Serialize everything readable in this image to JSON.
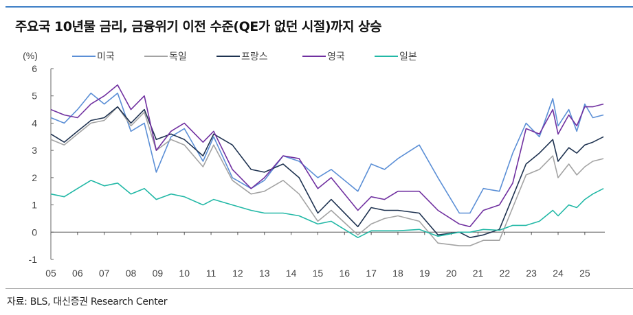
{
  "title": "주요국 10년물 금리, 금융위기 이전 수준(QE가 없던 시절)까지 상승",
  "source": "자료: BLS, 대신증권 Research Center",
  "chart_data": {
    "type": "line",
    "title": "주요국 10년물 금리, 금융위기 이전 수준(QE가 없던 시절)까지 상승",
    "ylabel": "(%)",
    "ylim": [
      -1,
      6
    ],
    "yticks": [
      "-1",
      "0",
      "1",
      "2",
      "3",
      "4",
      "5",
      "6"
    ],
    "xlim": [
      2005,
      2025.75
    ],
    "xticks": [
      "05",
      "06",
      "07",
      "08",
      "09",
      "10",
      "11",
      "12",
      "13",
      "14",
      "15",
      "16",
      "17",
      "18",
      "19",
      "20",
      "21",
      "22",
      "23",
      "24",
      "25"
    ],
    "grid": false,
    "legend": "top",
    "x": [
      2005.0,
      2005.5,
      2006.0,
      2006.5,
      2007.0,
      2007.5,
      2008.0,
      2008.5,
      2008.95,
      2009.5,
      2010.0,
      2010.7,
      2011.1,
      2011.8,
      2012.5,
      2013.0,
      2013.7,
      2014.3,
      2015.0,
      2015.5,
      2016.5,
      2017.0,
      2017.5,
      2018.0,
      2018.8,
      2019.5,
      2020.3,
      2020.7,
      2021.2,
      2021.8,
      2022.3,
      2022.8,
      2023.3,
      2023.8,
      2024.0,
      2024.4,
      2024.7,
      2025.0,
      2025.3,
      2025.7
    ],
    "series": [
      {
        "name": "미국",
        "color": "#5b8fd6",
        "values": [
          4.2,
          4.0,
          4.5,
          5.1,
          4.7,
          5.1,
          3.7,
          4.0,
          2.2,
          3.5,
          3.8,
          2.6,
          3.5,
          2.0,
          1.6,
          1.9,
          2.8,
          2.6,
          2.0,
          2.3,
          1.5,
          2.5,
          2.3,
          2.7,
          3.2,
          2.0,
          0.7,
          0.7,
          1.6,
          1.5,
          2.9,
          4.0,
          3.5,
          4.9,
          3.9,
          4.5,
          3.7,
          4.7,
          4.2,
          4.3
        ]
      },
      {
        "name": "독일",
        "color": "#a3a3a3",
        "values": [
          3.4,
          3.2,
          3.6,
          4.0,
          4.1,
          4.6,
          3.9,
          4.4,
          3.0,
          3.4,
          3.2,
          2.4,
          3.2,
          1.9,
          1.4,
          1.5,
          1.9,
          1.4,
          0.4,
          0.8,
          -0.1,
          0.3,
          0.5,
          0.6,
          0.4,
          -0.4,
          -0.5,
          -0.5,
          -0.3,
          -0.3,
          0.9,
          2.1,
          2.3,
          2.8,
          2.0,
          2.5,
          2.1,
          2.4,
          2.6,
          2.7
        ]
      },
      {
        "name": "프랑스",
        "color": "#1e3250",
        "values": [
          3.6,
          3.3,
          3.7,
          4.1,
          4.2,
          4.6,
          4.0,
          4.5,
          3.4,
          3.6,
          3.4,
          2.8,
          3.6,
          3.2,
          2.3,
          2.2,
          2.5,
          2.0,
          0.7,
          1.2,
          0.2,
          0.9,
          0.8,
          0.8,
          0.7,
          -0.1,
          0.0,
          -0.2,
          -0.1,
          0.1,
          1.3,
          2.5,
          2.9,
          3.4,
          2.6,
          3.1,
          2.9,
          3.2,
          3.3,
          3.5
        ]
      },
      {
        "name": "영국",
        "color": "#7030a0",
        "values": [
          4.5,
          4.3,
          4.2,
          4.7,
          5.0,
          5.4,
          4.5,
          5.0,
          3.0,
          3.7,
          4.0,
          3.3,
          3.7,
          2.3,
          1.6,
          2.0,
          2.8,
          2.7,
          1.6,
          2.0,
          0.8,
          1.3,
          1.2,
          1.5,
          1.5,
          0.8,
          0.3,
          0.2,
          0.8,
          1.0,
          1.8,
          3.8,
          3.6,
          4.5,
          3.6,
          4.3,
          3.9,
          4.6,
          4.6,
          4.7
        ]
      },
      {
        "name": "일본",
        "color": "#22b8a6",
        "values": [
          1.4,
          1.3,
          1.6,
          1.9,
          1.7,
          1.8,
          1.4,
          1.6,
          1.2,
          1.4,
          1.3,
          1.0,
          1.2,
          1.0,
          0.8,
          0.7,
          0.7,
          0.6,
          0.3,
          0.4,
          -0.2,
          0.05,
          0.05,
          0.05,
          0.1,
          -0.15,
          0.0,
          0.0,
          0.1,
          0.07,
          0.25,
          0.25,
          0.4,
          0.8,
          0.6,
          1.0,
          0.9,
          1.2,
          1.4,
          1.6
        ]
      }
    ]
  }
}
